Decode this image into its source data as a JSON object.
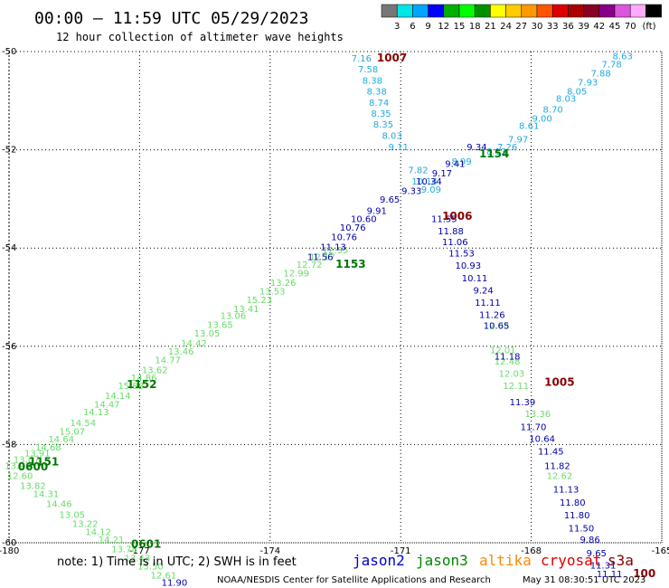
{
  "header": {
    "title": "00:00 – 11:59 UTC 05/29/2023",
    "subtitle": "12 hour collection of altimeter wave heights"
  },
  "legend": {
    "colors": [
      "#777777",
      "#00e5e5",
      "#00a5ff",
      "#0000ff",
      "#00b000",
      "#00ff00",
      "#009000",
      "#ffff00",
      "#ffcc00",
      "#ff9900",
      "#ff5500",
      "#dd0000",
      "#aa0000",
      "#880022",
      "#880088",
      "#dd55dd",
      "#ffaaff",
      "#000000"
    ],
    "labels": [
      "3",
      "6",
      "9",
      "12",
      "15",
      "18",
      "21",
      "24",
      "27",
      "30",
      "33",
      "36",
      "39",
      "42",
      "45",
      "70"
    ],
    "unit": "(ft)"
  },
  "chart_data": {
    "type": "scatter",
    "xlim": [
      -180,
      -165
    ],
    "ylim": [
      -60,
      -50
    ],
    "xticks": [
      "-180",
      "-177",
      "-174",
      "-171",
      "-168",
      "-165"
    ],
    "yticks": [
      "-50",
      "-52",
      "-54",
      "-56",
      "-58",
      "-60"
    ],
    "grid": true,
    "series": [
      {
        "name": "jason3",
        "points": [
          {
            "x": -179.8,
            "y": -58.43,
            "v": "13.93"
          },
          {
            "x": -179.6,
            "y": -58.3,
            "v": "13.07"
          },
          {
            "x": -179.35,
            "y": -58.17,
            "v": "13.91"
          },
          {
            "x": -179.1,
            "y": -58.05,
            "v": "14.68"
          },
          {
            "x": -178.8,
            "y": -57.88,
            "v": "14.64"
          },
          {
            "x": -178.55,
            "y": -57.73,
            "v": "15.07"
          },
          {
            "x": -178.3,
            "y": -57.55,
            "v": "14.54"
          },
          {
            "x": -178.0,
            "y": -57.33,
            "v": "14.13"
          },
          {
            "x": -177.75,
            "y": -57.17,
            "v": "14.47"
          },
          {
            "x": -177.5,
            "y": -57.0,
            "v": "14.14"
          },
          {
            "x": -177.2,
            "y": -56.8,
            "v": "15.83"
          },
          {
            "x": -176.9,
            "y": -56.63,
            "v": "14.86"
          },
          {
            "x": -176.65,
            "y": -56.47,
            "v": "13.62"
          },
          {
            "x": -176.35,
            "y": -56.27,
            "v": "14.77"
          },
          {
            "x": -176.05,
            "y": -56.1,
            "v": "13.46"
          },
          {
            "x": -175.75,
            "y": -55.93,
            "v": "14.42"
          },
          {
            "x": -175.45,
            "y": -55.73,
            "v": "13.05"
          },
          {
            "x": -175.15,
            "y": -55.55,
            "v": "13.65"
          },
          {
            "x": -174.85,
            "y": -55.37,
            "v": "13.06"
          },
          {
            "x": -174.55,
            "y": -55.23,
            "v": "13.41"
          },
          {
            "x": -174.25,
            "y": -55.05,
            "v": "15.23"
          },
          {
            "x": -173.95,
            "y": -54.87,
            "v": "13.53"
          },
          {
            "x": -173.7,
            "y": -54.7,
            "v": "13.26"
          },
          {
            "x": -173.4,
            "y": -54.5,
            "v": "12.99"
          },
          {
            "x": -173.1,
            "y": -54.33,
            "v": "12.72"
          },
          {
            "x": -172.8,
            "y": -54.17,
            "v": "12.17"
          },
          {
            "x": -172.5,
            "y": -54.03,
            "v": "12.35"
          },
          {
            "x": -179.75,
            "y": -58.63,
            "v": "12.60"
          },
          {
            "x": -179.45,
            "y": -58.83,
            "v": "13.82"
          },
          {
            "x": -179.15,
            "y": -59.0,
            "v": "14.31"
          },
          {
            "x": -178.85,
            "y": -59.2,
            "v": "14.46"
          },
          {
            "x": -178.55,
            "y": -59.42,
            "v": "13.05"
          },
          {
            "x": -178.25,
            "y": -59.6,
            "v": "13.22"
          },
          {
            "x": -177.95,
            "y": -59.77,
            "v": "14.12"
          },
          {
            "x": -177.65,
            "y": -59.93,
            "v": "14.21"
          },
          {
            "x": -177.35,
            "y": -60.12,
            "v": "13.78"
          },
          {
            "x": -177.05,
            "y": -60.3,
            "v": "13.43"
          },
          {
            "x": -176.75,
            "y": -60.47,
            "v": "13.50"
          },
          {
            "x": -176.45,
            "y": -60.65,
            "v": "12.61"
          },
          {
            "x": -168.8,
            "y": -55.57,
            "v": "12.08"
          },
          {
            "x": -168.65,
            "y": -56.07,
            "v": "12.01"
          },
          {
            "x": -168.55,
            "y": -56.3,
            "v": "12.48"
          },
          {
            "x": -168.45,
            "y": -56.55,
            "v": "12.03"
          },
          {
            "x": -168.35,
            "y": -56.8,
            "v": "12.11"
          },
          {
            "x": -167.85,
            "y": -57.37,
            "v": "13.36"
          },
          {
            "x": -167.35,
            "y": -58.63,
            "v": "12.62"
          }
        ]
      },
      {
        "name": "altika",
        "points": [
          {
            "x": -171.9,
            "y": -50.13,
            "v": "7.16"
          },
          {
            "x": -171.75,
            "y": -50.35,
            "v": "7.58"
          },
          {
            "x": -171.65,
            "y": -50.58,
            "v": "8.38"
          },
          {
            "x": -171.55,
            "y": -50.8,
            "v": "8.38"
          },
          {
            "x": -171.5,
            "y": -51.03,
            "v": "8.74"
          },
          {
            "x": -171.45,
            "y": -51.25,
            "v": "8.35"
          },
          {
            "x": -171.4,
            "y": -51.47,
            "v": "8.35"
          },
          {
            "x": -171.2,
            "y": -51.7,
            "v": "8.03"
          },
          {
            "x": -171.05,
            "y": -51.93,
            "v": "9.11"
          },
          {
            "x": -168.05,
            "y": -51.5,
            "v": "8.61"
          },
          {
            "x": -168.3,
            "y": -51.78,
            "v": "7.97"
          },
          {
            "x": -168.55,
            "y": -51.93,
            "v": "7.26"
          },
          {
            "x": -168.8,
            "y": -52.03,
            "v": "8.13"
          },
          {
            "x": -169.6,
            "y": -52.23,
            "v": "8.99"
          },
          {
            "x": -167.75,
            "y": -51.35,
            "v": "9.00"
          },
          {
            "x": -167.5,
            "y": -51.17,
            "v": "8.70"
          },
          {
            "x": -167.2,
            "y": -50.95,
            "v": "8.03"
          },
          {
            "x": -166.95,
            "y": -50.8,
            "v": "8.05"
          },
          {
            "x": -166.7,
            "y": -50.62,
            "v": "7.93"
          },
          {
            "x": -166.4,
            "y": -50.43,
            "v": "7.88"
          },
          {
            "x": -166.15,
            "y": -50.25,
            "v": "7.78"
          },
          {
            "x": -165.9,
            "y": -50.08,
            "v": "8.63"
          },
          {
            "x": -170.6,
            "y": -52.4,
            "v": "7.82"
          },
          {
            "x": -170.45,
            "y": -52.63,
            "v": "10.14"
          },
          {
            "x": -170.3,
            "y": -52.8,
            "v": "9.09"
          }
        ]
      },
      {
        "name": "jason2",
        "points": [
          {
            "x": -169.25,
            "y": -51.93,
            "v": "9.34"
          },
          {
            "x": -169.75,
            "y": -52.27,
            "v": "9.41"
          },
          {
            "x": -170.05,
            "y": -52.47,
            "v": "9.17"
          },
          {
            "x": -170.35,
            "y": -52.63,
            "v": "10.34"
          },
          {
            "x": -170.75,
            "y": -52.83,
            "v": "9.33"
          },
          {
            "x": -171.25,
            "y": -53.0,
            "v": "9.65"
          },
          {
            "x": -171.55,
            "y": -53.23,
            "v": "9.91"
          },
          {
            "x": -171.85,
            "y": -53.4,
            "v": "10.60"
          },
          {
            "x": -172.1,
            "y": -53.57,
            "v": "10.76"
          },
          {
            "x": -172.3,
            "y": -53.77,
            "v": "10.76"
          },
          {
            "x": -172.55,
            "y": -53.97,
            "v": "11.13"
          },
          {
            "x": -172.85,
            "y": -54.17,
            "v": "11.56"
          },
          {
            "x": -170.0,
            "y": -53.4,
            "v": "11.55"
          },
          {
            "x": -169.85,
            "y": -53.65,
            "v": "11.88"
          },
          {
            "x": -169.75,
            "y": -53.87,
            "v": "11.06"
          },
          {
            "x": -169.6,
            "y": -54.1,
            "v": "11.53"
          },
          {
            "x": -169.45,
            "y": -54.35,
            "v": "10.93"
          },
          {
            "x": -169.3,
            "y": -54.6,
            "v": "10.11"
          },
          {
            "x": -169.1,
            "y": -54.85,
            "v": "9.24"
          },
          {
            "x": -169.0,
            "y": -55.1,
            "v": "11.11"
          },
          {
            "x": -168.9,
            "y": -55.35,
            "v": "11.26"
          },
          {
            "x": -168.8,
            "y": -55.57,
            "v": "10.65"
          },
          {
            "x": -168.55,
            "y": -56.2,
            "v": "11.18"
          },
          {
            "x": -168.2,
            "y": -57.13,
            "v": "11.39"
          },
          {
            "x": -167.95,
            "y": -57.63,
            "v": "11.70"
          },
          {
            "x": -167.75,
            "y": -57.87,
            "v": "10.64"
          },
          {
            "x": -167.55,
            "y": -58.13,
            "v": "11.45"
          },
          {
            "x": -167.4,
            "y": -58.43,
            "v": "11.82"
          },
          {
            "x": -167.2,
            "y": -58.9,
            "v": "11.13"
          },
          {
            "x": -167.05,
            "y": -59.17,
            "v": "11.80"
          },
          {
            "x": -166.95,
            "y": -59.43,
            "v": "11.80"
          },
          {
            "x": -166.85,
            "y": -59.7,
            "v": "11.50"
          },
          {
            "x": -166.65,
            "y": -59.93,
            "v": "9.86"
          },
          {
            "x": -166.5,
            "y": -60.2,
            "v": "9.65"
          },
          {
            "x": -166.35,
            "y": -60.45,
            "v": "11.31"
          },
          {
            "x": -166.2,
            "y": -60.63,
            "v": "11.11"
          },
          {
            "x": -176.2,
            "y": -60.8,
            "v": "11.90"
          }
        ]
      }
    ],
    "passes": [
      {
        "x": -171.2,
        "y": -50.13,
        "v": "1007",
        "sat": "cryosat"
      },
      {
        "x": -168.85,
        "y": -52.08,
        "v": "1154",
        "sat": "jason3"
      },
      {
        "x": -169.7,
        "y": -53.35,
        "v": "1006",
        "sat": "cryosat"
      },
      {
        "x": -172.15,
        "y": -54.33,
        "v": "1153",
        "sat": "jason3"
      },
      {
        "x": -176.95,
        "y": -56.78,
        "v": "1152",
        "sat": "jason3"
      },
      {
        "x": -167.35,
        "y": -56.73,
        "v": "1005",
        "sat": "cryosat"
      },
      {
        "x": -179.2,
        "y": -58.35,
        "v": "1151",
        "sat": "jason3"
      },
      {
        "x": -179.45,
        "y": -58.45,
        "v": "0600",
        "sat": "jason3"
      },
      {
        "x": -176.85,
        "y": -60.03,
        "v": "0601",
        "sat": "jason3"
      },
      {
        "x": -165.4,
        "y": -60.63,
        "v": "100",
        "sat": "cryosat"
      }
    ]
  },
  "footer": {
    "note": "note: 1) Time is in UTC; 2) SWH is in feet",
    "satellites": [
      {
        "name": "jason2",
        "color": "#0000cc"
      },
      {
        "name": "jason3",
        "color": "#008800"
      },
      {
        "name": "altika",
        "color": "#ff8800"
      },
      {
        "name": "cryosat",
        "color": "#dd0000"
      },
      {
        "name": "s3a",
        "color": "#880000"
      }
    ],
    "credit": "NOAA/NESDIS Center for Satellite Applications and Research",
    "timestamp": "May 31 08:30:51 UTC 2023"
  },
  "colors": {
    "jason2": "#0000aa",
    "jason3": "#66dd66",
    "altika": "#22aadd",
    "cryosat": "#880000",
    "jason3_pass": "#007700"
  }
}
